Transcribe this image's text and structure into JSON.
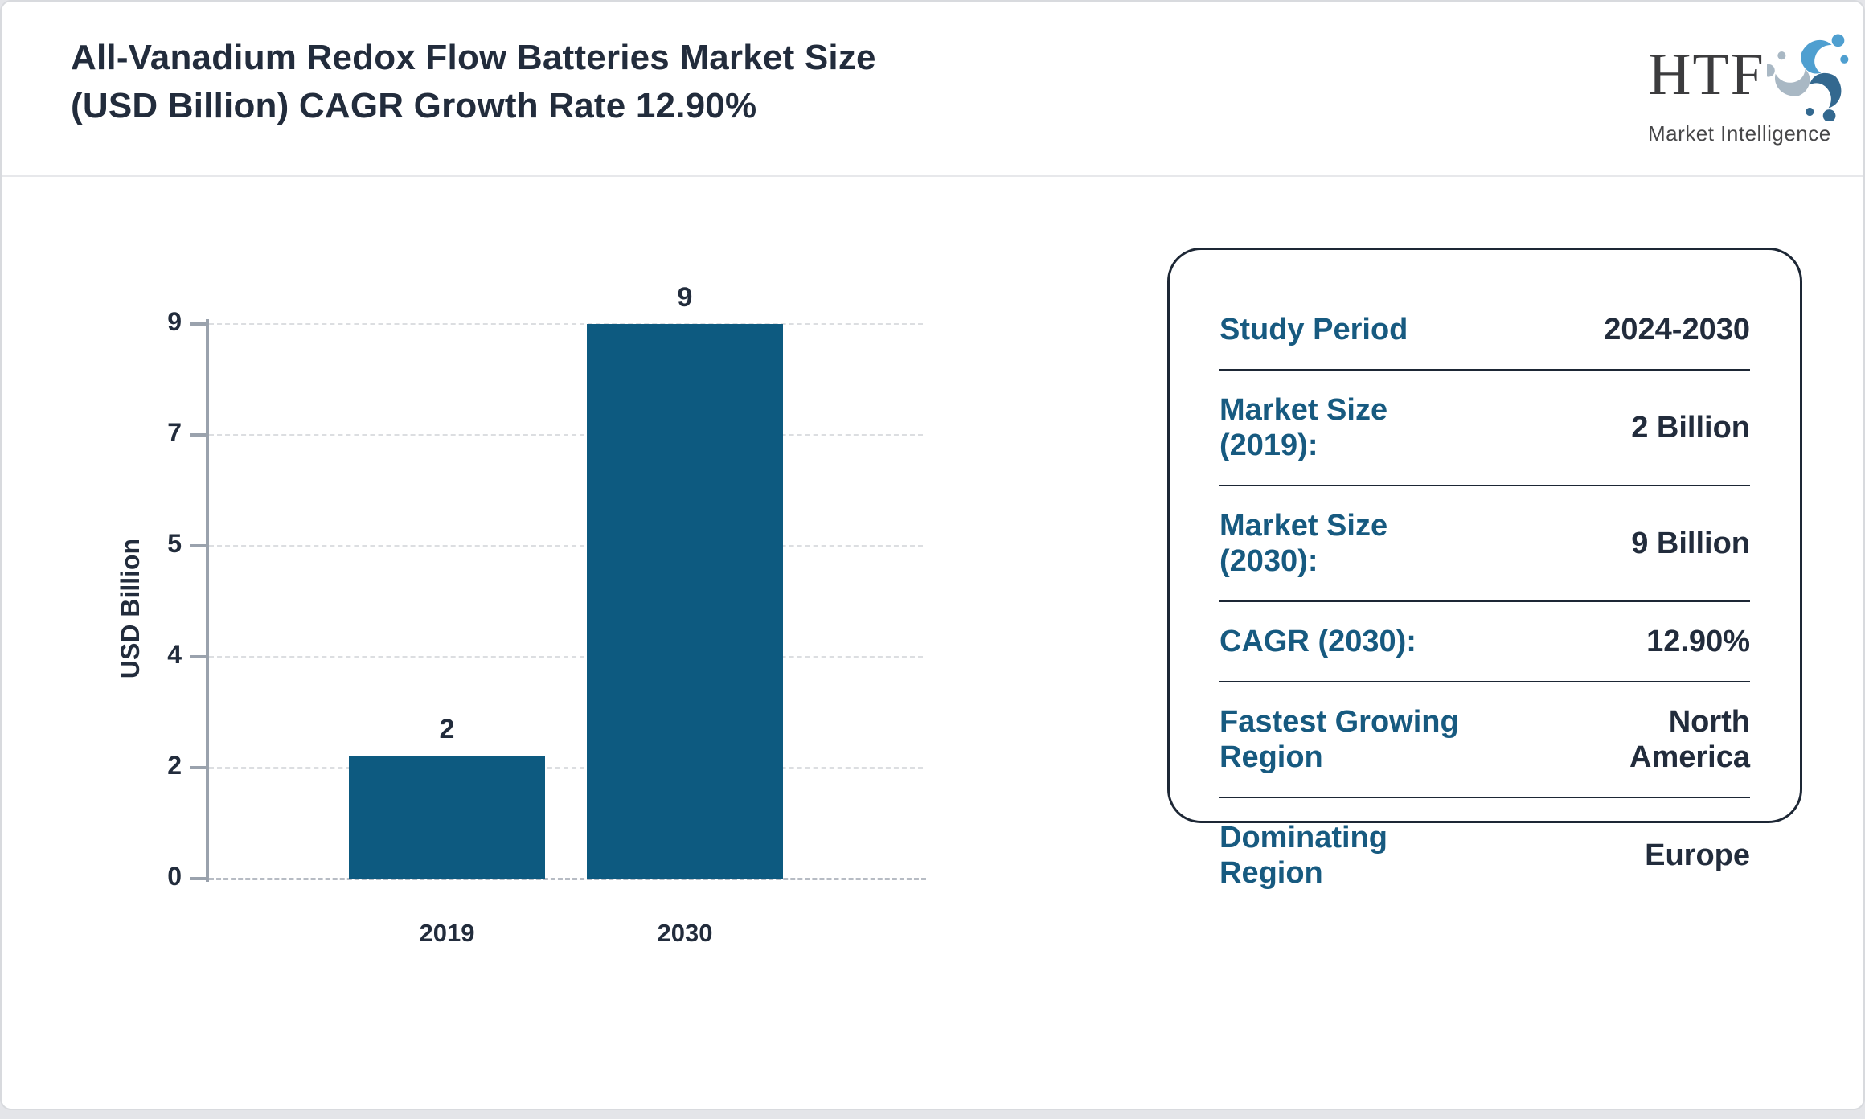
{
  "header": {
    "title_line1": "All-Vanadium Redox Flow Batteries Market Size",
    "title_line2": "(USD Billion) CAGR Growth Rate 12.90%",
    "logo": {
      "acronym": "HTF",
      "subtitle": "Market Intelligence"
    }
  },
  "chart_data": {
    "type": "bar",
    "categories": [
      "2019",
      "2030"
    ],
    "values": [
      2,
      9
    ],
    "bar_labels": [
      "2",
      "9"
    ],
    "title": "",
    "xlabel": "",
    "ylabel": "USD Billion",
    "ylim": [
      0,
      9
    ],
    "y_ticks": [
      {
        "value": 0,
        "label": "0"
      },
      {
        "value": 1.8,
        "label": "2"
      },
      {
        "value": 3.6,
        "label": "4"
      },
      {
        "value": 5.4,
        "label": "5"
      },
      {
        "value": 7.2,
        "label": "7"
      },
      {
        "value": 9,
        "label": "9"
      }
    ],
    "grid": "horizontal-dashed",
    "legend": "none",
    "bar_color": "#0d5a80"
  },
  "summary_card": {
    "rows": [
      {
        "label": "Study Period",
        "value": "2024-2030"
      },
      {
        "label": "Market Size (2019):",
        "value": "2 Billion"
      },
      {
        "label": "Market Size (2030):",
        "value": "9 Billion"
      },
      {
        "label": "CAGR (2030):",
        "value": "12.90%"
      },
      {
        "label": "Fastest Growing Region",
        "value": "North America"
      },
      {
        "label": "Dominating Region",
        "value": "Europe"
      }
    ]
  },
  "colors": {
    "accent_teal": "#175a80",
    "bar": "#0d5a80",
    "dark_text": "#222c3c",
    "axis_gray": "#9aa2ad",
    "logo_light_blue": "#4f9fd0",
    "logo_gray_blue": "#a9b8c4",
    "logo_dark_blue": "#33688f"
  }
}
